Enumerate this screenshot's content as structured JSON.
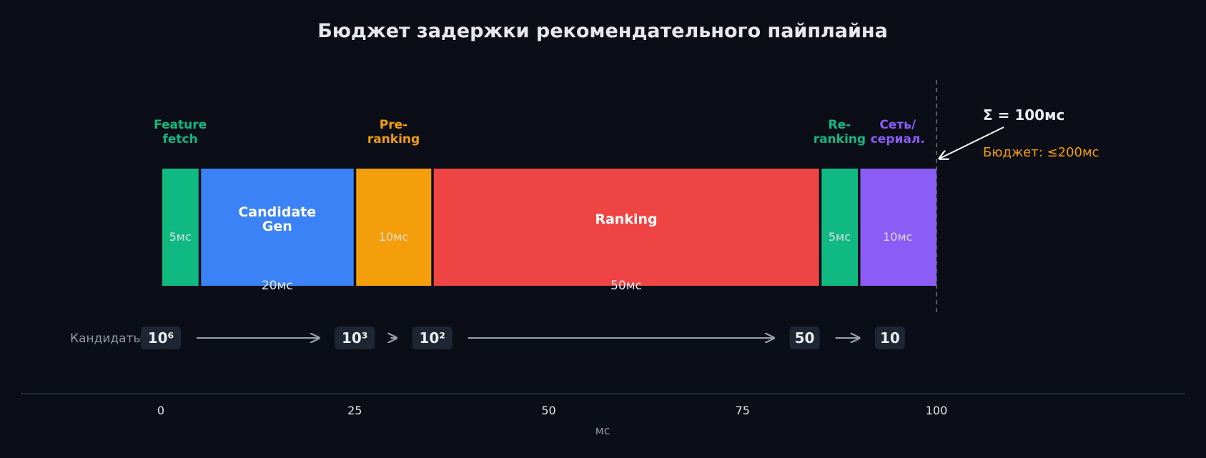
{
  "chart_data": {
    "type": "bar",
    "title": "Бюджет задержки рекомендательного пайплайна",
    "xlabel": "мс",
    "xlim": [
      -18,
      131
    ],
    "xticks": [
      0,
      25,
      50,
      75,
      100
    ],
    "grid": false,
    "stages": [
      {
        "key": "feature-fetch",
        "top_label": "Feature\nfetch",
        "inner_label": "",
        "start": 0,
        "duration": 5,
        "duration_label": "5мс",
        "duration_in_bar": true,
        "color": "#10b981",
        "label_color": "#10b981"
      },
      {
        "key": "candidate-gen",
        "top_label": "",
        "inner_label": "Candidate\nGen",
        "start": 5,
        "duration": 20,
        "duration_label": "20мс",
        "duration_in_bar": false,
        "color": "#3b82f6",
        "label_color": "#ffffff"
      },
      {
        "key": "pre-ranking",
        "top_label": "Pre-\nranking",
        "inner_label": "",
        "start": 25,
        "duration": 10,
        "duration_label": "10мс",
        "duration_in_bar": true,
        "color": "#f59e0b",
        "label_color": "#f59e0b"
      },
      {
        "key": "ranking",
        "top_label": "",
        "inner_label": "Ranking",
        "start": 35,
        "duration": 50,
        "duration_label": "50мс",
        "duration_in_bar": false,
        "color": "#ef4444",
        "label_color": "#ffffff"
      },
      {
        "key": "re-ranking",
        "top_label": "Re-\nranking",
        "inner_label": "",
        "start": 85,
        "duration": 5,
        "duration_label": "5мс",
        "duration_in_bar": true,
        "color": "#10b981",
        "label_color": "#10b981"
      },
      {
        "key": "network",
        "top_label": "Сеть/\nсериал.",
        "inner_label": "",
        "start": 90,
        "duration": 10,
        "duration_label": "10мс",
        "duration_in_bar": true,
        "color": "#8b5cf6",
        "label_color": "#8b5cf6"
      }
    ],
    "total_line_x": 100,
    "annotation": {
      "sum_text": "Σ = 100мс",
      "budget_text": "Бюджет: ≤200мс"
    },
    "candidates": {
      "label": "Кандидаты:",
      "points": [
        {
          "x": 0,
          "text": "10⁶"
        },
        {
          "x": 25,
          "text": "10³"
        },
        {
          "x": 35,
          "text": "10²"
        },
        {
          "x": 83,
          "text": "50"
        },
        {
          "x": 94,
          "text": "10"
        }
      ]
    }
  },
  "colors": {
    "background": "#0b0e17",
    "title": "#e8e8ec",
    "axis": "#2a3040",
    "badge": "#1e2533",
    "arrow": "#9aa0aa",
    "budget": "#f29e0d"
  }
}
